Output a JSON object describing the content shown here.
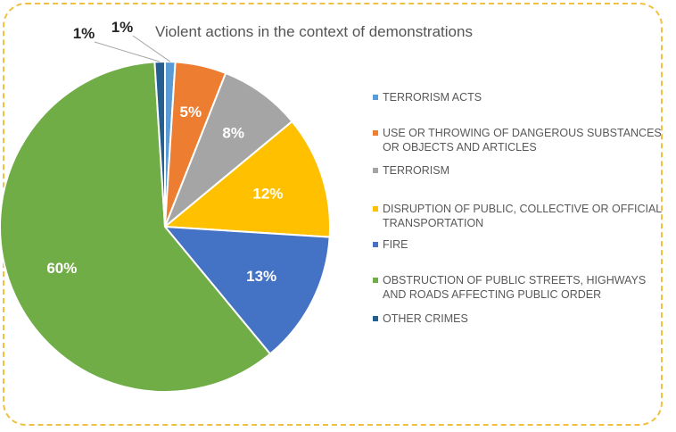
{
  "chart_data": {
    "type": "pie",
    "title": "Violent actions in the context of demonstrations",
    "legend_position": "right",
    "slices": [
      {
        "label": "TERRORISM ACTS",
        "value": 1,
        "display": "1%",
        "color": "#5b9bd5"
      },
      {
        "label": "USE OR THROWING OF DANGEROUS SUBSTANCES OR OBJECTS AND ARTICLES",
        "value": 5,
        "display": "5%",
        "color": "#ed7d31"
      },
      {
        "label": "TERRORISM",
        "value": 8,
        "display": "8%",
        "color": "#a5a5a5"
      },
      {
        "label": "DISRUPTION OF PUBLIC, COLLECTIVE OR OFFICIAL TRANSPORTATION",
        "value": 12,
        "display": "12%",
        "color": "#ffc000"
      },
      {
        "label": "FIRE",
        "value": 13,
        "display": "13%",
        "color": "#4472c4"
      },
      {
        "label": "OBSTRUCTION OF PUBLIC STREETS, HIGHWAYS AND ROADS AFFECTING PUBLIC ORDER",
        "value": 60,
        "display": "60%",
        "color": "#70ad47"
      },
      {
        "label": "OTHER CRIMES",
        "value": 1,
        "display": "1%",
        "color": "#255e91"
      }
    ]
  }
}
